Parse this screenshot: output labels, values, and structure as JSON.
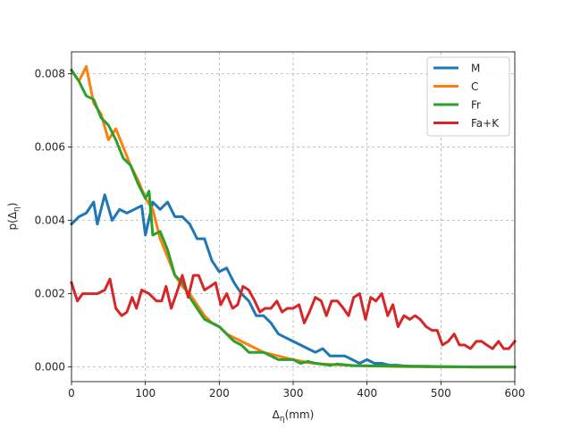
{
  "chart_data": {
    "type": "line",
    "xlabel": "Δη(mm)",
    "ylabel": "p(Δη)",
    "xlim": [
      0,
      600
    ],
    "ylim": [
      -0.0004,
      0.0086
    ],
    "xticks": [
      "0",
      "100",
      "200",
      "300",
      "400",
      "500",
      "600"
    ],
    "yticks": [
      "0.000",
      "0.002",
      "0.004",
      "0.006",
      "0.008"
    ],
    "grid": true,
    "legend_position": "top-right",
    "series": [
      {
        "name": "M",
        "color": "#1f77b4",
        "points": [
          [
            0,
            0.0039
          ],
          [
            10,
            0.0041
          ],
          [
            20,
            0.0042
          ],
          [
            30,
            0.0045
          ],
          [
            35,
            0.0039
          ],
          [
            45,
            0.0047
          ],
          [
            55,
            0.004
          ],
          [
            65,
            0.0043
          ],
          [
            75,
            0.0042
          ],
          [
            85,
            0.0043
          ],
          [
            95,
            0.0044
          ],
          [
            100,
            0.0036
          ],
          [
            110,
            0.0045
          ],
          [
            120,
            0.0043
          ],
          [
            130,
            0.0045
          ],
          [
            140,
            0.0041
          ],
          [
            150,
            0.0041
          ],
          [
            160,
            0.0039
          ],
          [
            170,
            0.0035
          ],
          [
            180,
            0.0035
          ],
          [
            190,
            0.0029
          ],
          [
            200,
            0.0026
          ],
          [
            210,
            0.0027
          ],
          [
            220,
            0.0023
          ],
          [
            230,
            0.002
          ],
          [
            240,
            0.0018
          ],
          [
            250,
            0.0014
          ],
          [
            260,
            0.0014
          ],
          [
            270,
            0.0012
          ],
          [
            280,
            0.0009
          ],
          [
            290,
            0.0008
          ],
          [
            300,
            0.0007
          ],
          [
            310,
            0.0006
          ],
          [
            320,
            0.0005
          ],
          [
            330,
            0.0004
          ],
          [
            340,
            0.0005
          ],
          [
            350,
            0.0003
          ],
          [
            360,
            0.0003
          ],
          [
            370,
            0.0003
          ],
          [
            380,
            0.0002
          ],
          [
            390,
            0.0001
          ],
          [
            400,
            0.0002
          ],
          [
            410,
            0.0001
          ],
          [
            420,
            0.0001
          ],
          [
            430,
            5e-05
          ],
          [
            440,
            5e-05
          ],
          [
            450,
            3e-05
          ],
          [
            460,
            2e-05
          ],
          [
            480,
            2e-05
          ],
          [
            500,
            1e-05
          ],
          [
            550,
            0.0
          ],
          [
            600,
            0.0
          ]
        ]
      },
      {
        "name": "C",
        "color": "#ff7f0e",
        "points": [
          [
            0,
            0.0081
          ],
          [
            10,
            0.0078
          ],
          [
            20,
            0.0082
          ],
          [
            30,
            0.0072
          ],
          [
            40,
            0.0069
          ],
          [
            50,
            0.0062
          ],
          [
            60,
            0.0065
          ],
          [
            70,
            0.006
          ],
          [
            80,
            0.0055
          ],
          [
            90,
            0.0051
          ],
          [
            100,
            0.0046
          ],
          [
            110,
            0.0043
          ],
          [
            120,
            0.0035
          ],
          [
            130,
            0.003
          ],
          [
            140,
            0.0025
          ],
          [
            150,
            0.0022
          ],
          [
            160,
            0.002
          ],
          [
            170,
            0.0017
          ],
          [
            180,
            0.0014
          ],
          [
            190,
            0.0012
          ],
          [
            200,
            0.0011
          ],
          [
            210,
            0.0009
          ],
          [
            220,
            0.0008
          ],
          [
            230,
            0.0007
          ],
          [
            240,
            0.0006
          ],
          [
            250,
            0.0005
          ],
          [
            260,
            0.0004
          ],
          [
            280,
            0.0003
          ],
          [
            300,
            0.0002
          ],
          [
            320,
            0.00012
          ],
          [
            340,
            8e-05
          ],
          [
            360,
            6e-05
          ],
          [
            380,
            4e-05
          ],
          [
            400,
            3e-05
          ],
          [
            450,
            1e-05
          ],
          [
            500,
            0.0
          ],
          [
            600,
            0.0
          ]
        ]
      },
      {
        "name": "Fr",
        "color": "#2ca02c",
        "points": [
          [
            0,
            0.0081
          ],
          [
            10,
            0.0078
          ],
          [
            20,
            0.0074
          ],
          [
            30,
            0.0073
          ],
          [
            40,
            0.0068
          ],
          [
            50,
            0.0066
          ],
          [
            60,
            0.0062
          ],
          [
            70,
            0.0057
          ],
          [
            80,
            0.0055
          ],
          [
            90,
            0.005
          ],
          [
            100,
            0.0046
          ],
          [
            105,
            0.0048
          ],
          [
            110,
            0.0036
          ],
          [
            120,
            0.0037
          ],
          [
            130,
            0.0032
          ],
          [
            140,
            0.0025
          ],
          [
            150,
            0.0023
          ],
          [
            160,
            0.0019
          ],
          [
            170,
            0.0016
          ],
          [
            180,
            0.0013
          ],
          [
            190,
            0.0012
          ],
          [
            200,
            0.0011
          ],
          [
            210,
            0.0009
          ],
          [
            220,
            0.0007
          ],
          [
            230,
            0.0006
          ],
          [
            240,
            0.0004
          ],
          [
            250,
            0.0004
          ],
          [
            260,
            0.0004
          ],
          [
            270,
            0.0003
          ],
          [
            280,
            0.0002
          ],
          [
            300,
            0.0002
          ],
          [
            310,
            0.0001
          ],
          [
            320,
            0.00015
          ],
          [
            330,
            0.0001
          ],
          [
            350,
            5e-05
          ],
          [
            360,
            8e-05
          ],
          [
            380,
            4e-05
          ],
          [
            400,
            3e-05
          ],
          [
            450,
            2e-05
          ],
          [
            500,
            1e-05
          ],
          [
            550,
            0.0
          ],
          [
            600,
            0.0
          ]
        ]
      },
      {
        "name": "Fa+K",
        "color": "#d62728",
        "points": [
          [
            0,
            0.0023
          ],
          [
            8,
            0.0018
          ],
          [
            15,
            0.002
          ],
          [
            25,
            0.002
          ],
          [
            35,
            0.002
          ],
          [
            45,
            0.0021
          ],
          [
            52,
            0.0024
          ],
          [
            60,
            0.0016
          ],
          [
            68,
            0.0014
          ],
          [
            75,
            0.0015
          ],
          [
            82,
            0.0019
          ],
          [
            88,
            0.0016
          ],
          [
            95,
            0.0021
          ],
          [
            105,
            0.002
          ],
          [
            115,
            0.0018
          ],
          [
            122,
            0.0018
          ],
          [
            128,
            0.0022
          ],
          [
            135,
            0.0016
          ],
          [
            142,
            0.002
          ],
          [
            150,
            0.0025
          ],
          [
            158,
            0.0019
          ],
          [
            165,
            0.0025
          ],
          [
            172,
            0.0025
          ],
          [
            180,
            0.0021
          ],
          [
            188,
            0.0022
          ],
          [
            195,
            0.0023
          ],
          [
            202,
            0.0017
          ],
          [
            210,
            0.002
          ],
          [
            218,
            0.0016
          ],
          [
            225,
            0.0017
          ],
          [
            232,
            0.0022
          ],
          [
            240,
            0.0021
          ],
          [
            248,
            0.0018
          ],
          [
            255,
            0.0015
          ],
          [
            262,
            0.0016
          ],
          [
            270,
            0.0016
          ],
          [
            278,
            0.0018
          ],
          [
            285,
            0.0015
          ],
          [
            292,
            0.0016
          ],
          [
            300,
            0.0016
          ],
          [
            308,
            0.0017
          ],
          [
            315,
            0.0012
          ],
          [
            322,
            0.0015
          ],
          [
            330,
            0.0019
          ],
          [
            338,
            0.0018
          ],
          [
            345,
            0.0014
          ],
          [
            352,
            0.0018
          ],
          [
            360,
            0.0018
          ],
          [
            368,
            0.0016
          ],
          [
            375,
            0.0014
          ],
          [
            382,
            0.0019
          ],
          [
            390,
            0.002
          ],
          [
            398,
            0.0013
          ],
          [
            405,
            0.0019
          ],
          [
            412,
            0.0018
          ],
          [
            420,
            0.002
          ],
          [
            428,
            0.0014
          ],
          [
            435,
            0.0017
          ],
          [
            442,
            0.0011
          ],
          [
            450,
            0.0014
          ],
          [
            458,
            0.0013
          ],
          [
            465,
            0.0014
          ],
          [
            472,
            0.0013
          ],
          [
            480,
            0.0011
          ],
          [
            488,
            0.001
          ],
          [
            495,
            0.001
          ],
          [
            502,
            0.0006
          ],
          [
            510,
            0.0007
          ],
          [
            518,
            0.0009
          ],
          [
            525,
            0.0006
          ],
          [
            532,
            0.0006
          ],
          [
            540,
            0.0005
          ],
          [
            548,
            0.0007
          ],
          [
            555,
            0.0007
          ],
          [
            562,
            0.0006
          ],
          [
            570,
            0.0005
          ],
          [
            578,
            0.0007
          ],
          [
            585,
            0.0005
          ],
          [
            592,
            0.0005
          ],
          [
            600,
            0.0007
          ]
        ]
      }
    ]
  }
}
